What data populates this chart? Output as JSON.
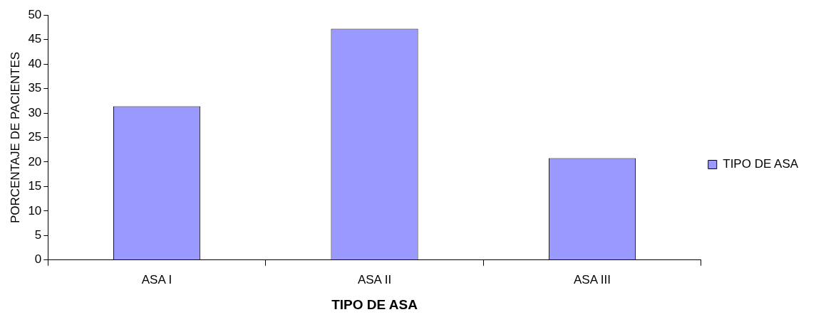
{
  "chart_data": {
    "type": "bar",
    "xlabel": "TIPO DE ASA",
    "ylabel": "PORCENTAJE DE PACIENTES",
    "categories": [
      "ASA I",
      "ASA II",
      "ASA III"
    ],
    "series": [
      {
        "name": "TIPO DE ASA",
        "color": "#9999ff",
        "values": [
          31.4,
          47.2,
          20.8
        ]
      }
    ],
    "ylim": [
      0,
      50
    ],
    "yticks": [
      0,
      5,
      10,
      15,
      20,
      25,
      30,
      35,
      40,
      45,
      50
    ],
    "grid": false,
    "legend": "right"
  }
}
